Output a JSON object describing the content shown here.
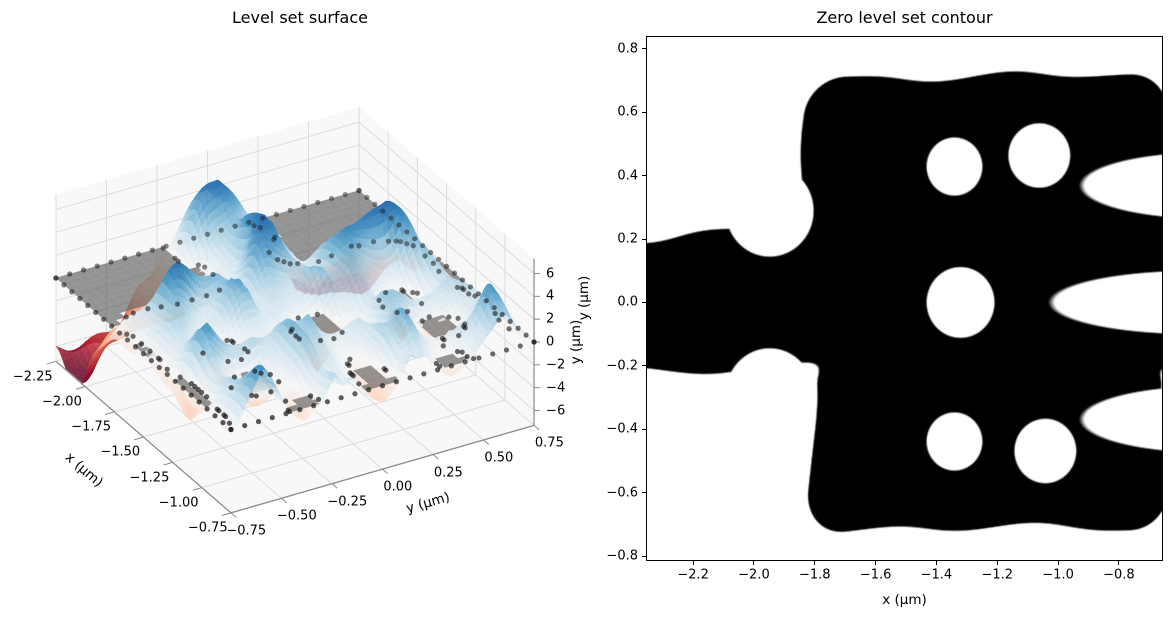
{
  "chart_data": [
    {
      "type": "surface3d",
      "title": "Level set surface",
      "xlabel": "x (μm)",
      "ylabel": "y (μm)",
      "zlabel": "y (μm)",
      "xlim": [
        -2.25,
        -0.75
      ],
      "ylim": [
        -0.75,
        0.75
      ],
      "zlim": [
        -7.3,
        7.3
      ],
      "xticks": [
        -2.25,
        -2.0,
        -1.75,
        -1.5,
        -1.25,
        -1.0,
        -0.75
      ],
      "xtick_labels": [
        "−2.25",
        "−2.00",
        "−1.75",
        "−1.50",
        "−1.25",
        "−1.00",
        "−0.75"
      ],
      "yticks": [
        -0.75,
        -0.5,
        -0.25,
        0.0,
        0.25,
        0.5,
        0.75
      ],
      "ytick_labels": [
        "−0.75",
        "−0.50",
        "−0.25",
        "0.00",
        "0.25",
        "0.50",
        "0.75"
      ],
      "zticks": [
        -6,
        -4,
        -2,
        0,
        2,
        4,
        6
      ],
      "ztick_labels": [
        "−6",
        "−4",
        "−2",
        "0",
        "2",
        "4",
        "6"
      ],
      "view": {
        "azim_deg": -60,
        "elev_deg": 30
      },
      "colormap": "RdBu",
      "colormap_stops": [
        [
          103,
          0,
          31
        ],
        [
          178,
          24,
          43
        ],
        [
          214,
          96,
          77
        ],
        [
          244,
          165,
          130
        ],
        [
          253,
          219,
          199
        ],
        [
          247,
          247,
          247
        ],
        [
          209,
          229,
          240
        ],
        [
          146,
          197,
          222
        ],
        [
          67,
          147,
          195
        ],
        [
          33,
          102,
          172
        ],
        [
          5,
          48,
          97
        ]
      ],
      "surface_alpha": 0.8,
      "zero_plane": {
        "z": 0,
        "color": "#555555",
        "alpha": 0.62
      },
      "scatter_points": {
        "color": "#1c1c1c",
        "radius_px": 2.6,
        "z": 0,
        "location": "zero level set contour and domain edges"
      },
      "z_model": {
        "amplitude": 7.0,
        "slope": 4.0,
        "clamp": 7.2,
        "rough": [
          {
            "amp": 2.1,
            "fx": 10.5,
            "fy": 9.3,
            "mx": 4.3,
            "my": 3.7,
            "p1": 1.0,
            "p2": 0.0
          },
          {
            "amp": 1.15,
            "fx": 16.9,
            "fy": 14.3,
            "kxy": 12.7,
            "kyx": -9.1,
            "p1": 2.0,
            "p2": 1.0
          }
        ],
        "rough_gate": {
          "scale": 5.0,
          "min": 0.15
        }
      }
    },
    {
      "type": "filled_contour",
      "title": "Zero level set contour",
      "xlabel": "x (μm)",
      "ylabel": "y (μm)",
      "xlim": [
        -2.355,
        -0.655
      ],
      "ylim": [
        -0.815,
        0.84
      ],
      "xticks": [
        -2.2,
        -2.0,
        -1.8,
        -1.6,
        -1.4,
        -1.2,
        -1.0,
        -0.8
      ],
      "xtick_labels": [
        "−2.2",
        "−2.0",
        "−1.8",
        "−1.6",
        "−1.4",
        "−1.2",
        "−1.0",
        "−0.8"
      ],
      "yticks": [
        -0.8,
        -0.6,
        -0.4,
        -0.2,
        0.0,
        0.2,
        0.4,
        0.6,
        0.8
      ],
      "ytick_labels": [
        "−0.8",
        "−0.6",
        "−0.4",
        "−0.2",
        "0.0",
        "0.2",
        "0.4",
        "0.6",
        "0.8"
      ],
      "level": 0,
      "fill_color": "#000000",
      "background": "#ffffff",
      "region": {
        "band_half_width": 0.21,
        "smooth_k": 0.05,
        "blobs": [
          {
            "cx": -1.23,
            "cy": 0.43,
            "hx": 0.47,
            "hy": 0.165,
            "r": 0.12
          },
          {
            "cx": -1.23,
            "cy": -0.43,
            "hx": 0.47,
            "hy": 0.165,
            "r": 0.12
          }
        ],
        "holes": [
          {
            "cx": -0.55,
            "cy": 0.0,
            "rx": 0.47,
            "ry": 0.1
          },
          {
            "cx": -0.5,
            "cy": 0.37,
            "rx": 0.42,
            "ry": 0.105
          },
          {
            "cx": -0.5,
            "cy": -0.37,
            "rx": 0.42,
            "ry": 0.105
          },
          {
            "cx": -1.95,
            "cy": 0.29,
            "r": 0.145
          },
          {
            "cx": -1.95,
            "cy": -0.29,
            "r": 0.145
          },
          {
            "cx": -1.34,
            "cy": 0.43,
            "r": 0.092
          },
          {
            "cx": -1.06,
            "cy": 0.465,
            "r": 0.102
          },
          {
            "cx": -1.32,
            "cy": 0.0,
            "r": 0.112
          },
          {
            "cx": -1.34,
            "cy": -0.44,
            "r": 0.092
          },
          {
            "cx": -1.04,
            "cy": -0.47,
            "r": 0.102
          }
        ],
        "wiggles": [
          {
            "amp": 0.02,
            "fx": 9.3,
            "fy": 8.0,
            "mx": 3.2,
            "my": 2.5,
            "p1": 0.8,
            "p2": 1.9
          },
          {
            "amp": 0.013,
            "fx": 5.1,
            "fy": 4.3,
            "p1": 2.0,
            "p2": 0.3
          }
        ]
      }
    }
  ]
}
